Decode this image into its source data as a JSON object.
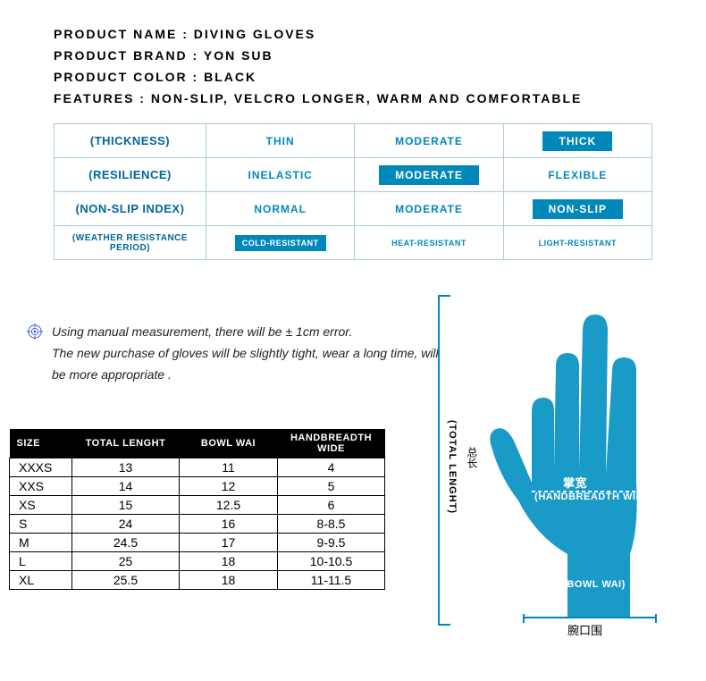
{
  "product": {
    "name_label": "PRODUCT NAME : DIVING GLOVES",
    "brand_label": "PRODUCT BRAND : YON SUB",
    "color_label": "PRODUCT COLOR : BLACK",
    "features_label": "FEATURES : NON-SLIP, VELCRO LONGER, WARM AND COMFORTABLE"
  },
  "attributes": {
    "colors": {
      "outline_text": "#0088bb",
      "filled_bg": "#0088bb",
      "filled_text": "#ffffff",
      "border": "#aaccdd"
    },
    "rows": [
      {
        "label": "(THICKNESS)",
        "label_small": false,
        "cells": [
          {
            "text": "THIN",
            "style": "outline"
          },
          {
            "text": "MODERATE",
            "style": "outline"
          },
          {
            "text": "THICK",
            "style": "filled"
          }
        ]
      },
      {
        "label": "(RESILIENCE)",
        "label_small": false,
        "cells": [
          {
            "text": "INELASTIC",
            "style": "outline"
          },
          {
            "text": "MODERATE",
            "style": "filled"
          },
          {
            "text": "FLEXIBLE",
            "style": "outline"
          }
        ]
      },
      {
        "label": "(NON-SLIP INDEX)",
        "label_small": false,
        "cells": [
          {
            "text": "NORMAL",
            "style": "outline"
          },
          {
            "text": "MODERATE",
            "style": "outline"
          },
          {
            "text": "NON-SLIP",
            "style": "filled"
          }
        ]
      },
      {
        "label": "(WEATHER RESISTANCE PERIOD)",
        "label_small": true,
        "cells": [
          {
            "text": "COLD-RESISTANT",
            "style": "filled",
            "small": true
          },
          {
            "text": "HEAT-RESISTANT",
            "style": "outline",
            "small": true
          },
          {
            "text": "LIGHT-RESISTANT",
            "style": "outline",
            "small": true
          }
        ]
      }
    ]
  },
  "note": {
    "line1": "Using manual measurement, there will be ± 1cm error.",
    "line2": "The new purchase of gloves will be slightly tight, wear a long time, will be more appropriate ."
  },
  "size_table": {
    "headers": [
      "SIZE",
      "TOTAL LENGHT",
      "BOWL WAI",
      "HANDBREADTH WIDE"
    ],
    "rows": [
      [
        "XXXS",
        "13",
        "11",
        "4"
      ],
      [
        "XXS",
        "14",
        "12",
        "5"
      ],
      [
        "XS",
        "15",
        "12.5",
        "6"
      ],
      [
        "S",
        "24",
        "16",
        "8-8.5"
      ],
      [
        "M",
        "24.5",
        "17",
        "9-9.5"
      ],
      [
        "L",
        "25",
        "18",
        "10-10.5"
      ],
      [
        "XL",
        "25.5",
        "18",
        "11-11.5"
      ]
    ],
    "header_bg": "#000000",
    "header_color": "#ffffff",
    "cell_border": "#000000"
  },
  "diagram": {
    "hand_fill": "#1a9bc7",
    "bracket_color": "#0088bb",
    "total_length_label": "(TOTAL LENGHT)",
    "total_length_cn": "总长",
    "handbreadth_label": "(HANDBREADTH WIDE)",
    "handbreadth_cn": "掌宽",
    "bowl_wai_label": "(BOWL WAI)",
    "bowl_wai_cn": "腕口围"
  }
}
